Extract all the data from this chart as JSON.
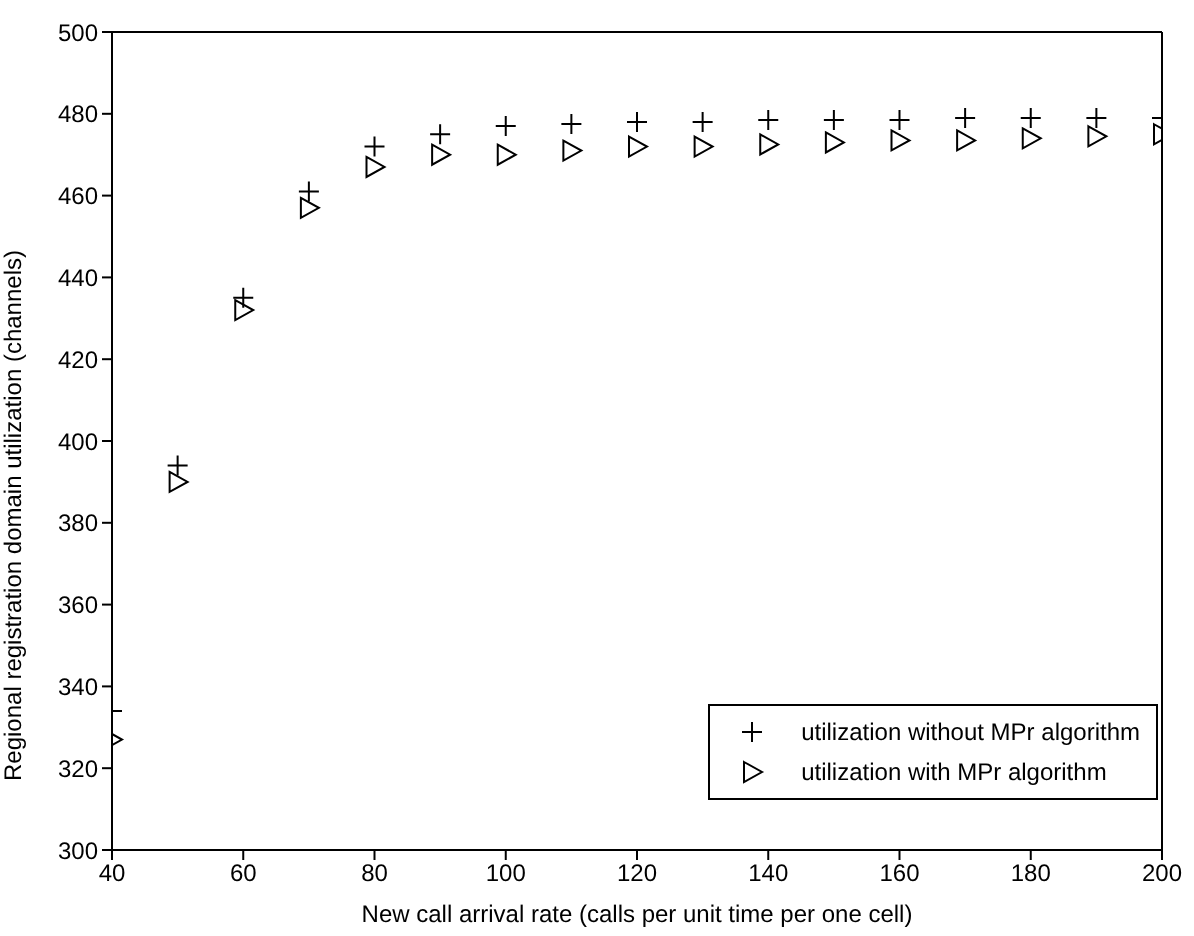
{
  "chart_data": {
    "type": "scatter",
    "xlabel": "New call arrival rate (calls per unit time per one cell)",
    "ylabel": "Regional registration domain utilization (channels)",
    "x": [
      40,
      50,
      60,
      70,
      80,
      90,
      100,
      110,
      120,
      130,
      140,
      150,
      160,
      170,
      180,
      190,
      200
    ],
    "series": [
      {
        "name": "utilization without MPr algorithm",
        "color": "#000000",
        "marker": "cross",
        "values": [
          334,
          394,
          435,
          461,
          472,
          475,
          477,
          477.5,
          478,
          478,
          478.5,
          478.5,
          478.5,
          479,
          479,
          479,
          479
        ]
      },
      {
        "name": "utilization with MPr algorithm",
        "color": "#000000",
        "marker": "triangle",
        "values": [
          327,
          390,
          432,
          457,
          467,
          470,
          470,
          471,
          472,
          472,
          472.5,
          473,
          473.5,
          473.5,
          474,
          474.5,
          475
        ]
      }
    ],
    "xlim": [
      40,
      200
    ],
    "xticks": [
      40,
      60,
      80,
      100,
      120,
      140,
      160,
      180,
      200
    ],
    "ylim": [
      300,
      500
    ],
    "yticks": [
      300,
      320,
      340,
      360,
      380,
      400,
      420,
      440,
      460,
      480,
      500
    ],
    "grid": false,
    "legend": "bottom right"
  }
}
